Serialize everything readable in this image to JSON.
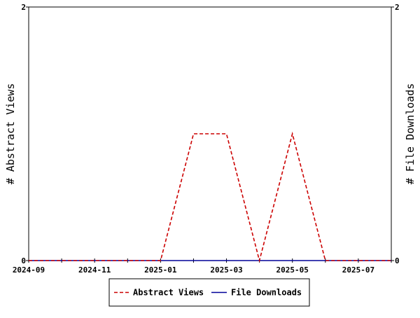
{
  "chart_data": {
    "type": "line",
    "title": "",
    "x": [
      "2024-09",
      "2024-10",
      "2024-11",
      "2024-12",
      "2025-01",
      "2025-02",
      "2025-03",
      "2025-04",
      "2025-05",
      "2025-06",
      "2025-07",
      "2025-08"
    ],
    "x_tick_labels": [
      "2024-09",
      "2024-11",
      "2025-01",
      "2025-03",
      "2025-05",
      "2025-07"
    ],
    "xlim": [
      "2024-09",
      "2025-08"
    ],
    "ylabel_left": "# Abstract Views",
    "ylabel_right": "# File Downloads",
    "ylim_left": [
      0,
      2
    ],
    "ylim_right": [
      0,
      2
    ],
    "y_tick_labels_left": [
      "0",
      "2"
    ],
    "y_tick_labels_right": [
      "0",
      "2"
    ],
    "grid": false,
    "legend_position": "bottom",
    "series": [
      {
        "name": "Abstract Views",
        "axis": "left",
        "color": "#cc0000",
        "line_style": "dashed",
        "values": [
          0,
          0,
          0,
          0,
          0,
          1,
          1,
          0,
          1,
          0,
          0,
          0
        ]
      },
      {
        "name": "File Downloads",
        "axis": "right",
        "color": "#000099",
        "line_style": "solid",
        "values": [
          0,
          0,
          0,
          0,
          0,
          0,
          0,
          0,
          0,
          0,
          0,
          0
        ]
      }
    ]
  }
}
